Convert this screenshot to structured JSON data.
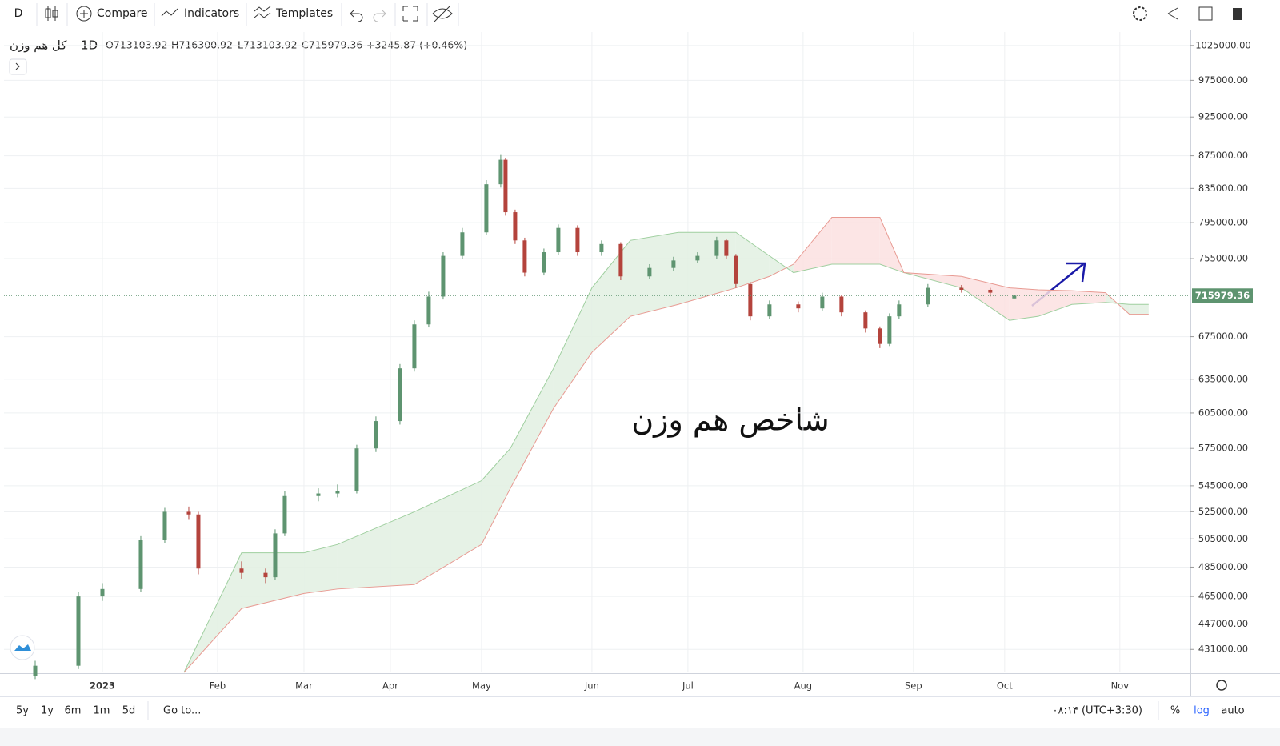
{
  "toolbar": {
    "interval": "D",
    "compare": "Compare",
    "indicators": "Indicators",
    "templates": "Templates"
  },
  "bottom_bar": {
    "ranges": [
      "5y",
      "1y",
      "6m",
      "1m",
      "5d"
    ],
    "goto": "Go to...",
    "time": "۰۸:۱۴ (UTC+3:30)",
    "percent": "%",
    "log": "log",
    "auto": "auto"
  },
  "chart_data": {
    "type": "candlestick",
    "symbol": "کل هم وزن",
    "interval": "1D",
    "legend_values": [
      "O713103.92",
      "H716300.92",
      "L713103.92",
      "C715979.36",
      "+3245.87 (+0.46%)"
    ],
    "annotation": "شاخص هم وزن",
    "log_scale": true,
    "grid": true,
    "up_color": "#5e9470",
    "down_color": "#b4433c",
    "cloud_up_color": "#e2f0e2",
    "cloud_down_color": "#fbe0e0",
    "span_a_color": "#9fcf9f",
    "span_b_color": "#e89a92",
    "xlim": [
      -20.5,
      226.7
    ],
    "xticks": [
      {
        "value": 0,
        "label": "2023"
      },
      {
        "value": 24,
        "label": "Feb"
      },
      {
        "value": 42,
        "label": "Mar"
      },
      {
        "value": 60,
        "label": "Apr"
      },
      {
        "value": 79,
        "label": "May"
      },
      {
        "value": 102,
        "label": "Jun"
      },
      {
        "value": 122,
        "label": "Jul"
      },
      {
        "value": 146,
        "label": "Aug"
      },
      {
        "value": 169,
        "label": "Sep"
      },
      {
        "value": 188,
        "label": "Oct"
      },
      {
        "value": 212,
        "label": "Nov"
      }
    ],
    "ylim": [
      417000,
      1045000
    ],
    "yticks": [
      {
        "value": 1025000,
        "label": "1025000.00"
      },
      {
        "value": 975000,
        "label": "975000.00"
      },
      {
        "value": 925000,
        "label": "925000.00"
      },
      {
        "value": 875000,
        "label": "875000.00"
      },
      {
        "value": 835000,
        "label": "835000.00"
      },
      {
        "value": 795000,
        "label": "795000.00"
      },
      {
        "value": 755000,
        "label": "755000.00"
      },
      {
        "value": 675000,
        "label": "675000.00"
      },
      {
        "value": 635000,
        "label": "635000.00"
      },
      {
        "value": 605000,
        "label": "605000.00"
      },
      {
        "value": 575000,
        "label": "575000.00"
      },
      {
        "value": 545000,
        "label": "545000.00"
      },
      {
        "value": 525000,
        "label": "525000.00"
      },
      {
        "value": 505000,
        "label": "505000.00"
      },
      {
        "value": 485000,
        "label": "485000.00"
      },
      {
        "value": 465000,
        "label": "465000.00"
      },
      {
        "value": 447000,
        "label": "447000.00"
      },
      {
        "value": 431000,
        "label": "431000.00"
      }
    ],
    "candles": [
      {
        "x": -14,
        "o": 415000,
        "h": 424000,
        "l": 413000,
        "c": 421000
      },
      {
        "x": -5,
        "o": 421000,
        "h": 468000,
        "l": 419000,
        "c": 465000
      },
      {
        "x": 0,
        "o": 465000,
        "h": 474000,
        "l": 462000,
        "c": 470000
      },
      {
        "x": 8,
        "o": 470000,
        "h": 507000,
        "l": 468000,
        "c": 504000
      },
      {
        "x": 13,
        "o": 504000,
        "h": 528000,
        "l": 502000,
        "c": 525000
      },
      {
        "x": 18,
        "o": 525000,
        "h": 529000,
        "l": 519000,
        "c": 523000
      },
      {
        "x": 20,
        "o": 523000,
        "h": 525000,
        "l": 480000,
        "c": 484000
      },
      {
        "x": 29,
        "o": 484000,
        "h": 489000,
        "l": 477000,
        "c": 481000
      },
      {
        "x": 34,
        "o": 481000,
        "h": 484000,
        "l": 474000,
        "c": 478000
      },
      {
        "x": 36,
        "o": 478000,
        "h": 512000,
        "l": 476000,
        "c": 509000
      },
      {
        "x": 38,
        "o": 509000,
        "h": 541000,
        "l": 507000,
        "c": 537000
      },
      {
        "x": 45,
        "o": 537000,
        "h": 543000,
        "l": 533000,
        "c": 539000
      },
      {
        "x": 49,
        "o": 539000,
        "h": 546000,
        "l": 536000,
        "c": 541000
      },
      {
        "x": 53,
        "o": 541000,
        "h": 578000,
        "l": 539000,
        "c": 575000
      },
      {
        "x": 57,
        "o": 575000,
        "h": 602000,
        "l": 572000,
        "c": 598000
      },
      {
        "x": 62,
        "o": 598000,
        "h": 649000,
        "l": 595000,
        "c": 645000
      },
      {
        "x": 65,
        "o": 645000,
        "h": 691000,
        "l": 642000,
        "c": 687000
      },
      {
        "x": 68,
        "o": 687000,
        "h": 720000,
        "l": 684000,
        "c": 715000
      },
      {
        "x": 71,
        "o": 715000,
        "h": 762000,
        "l": 712000,
        "c": 758000
      },
      {
        "x": 75,
        "o": 758000,
        "h": 789000,
        "l": 755000,
        "c": 784000
      },
      {
        "x": 80,
        "o": 784000,
        "h": 845000,
        "l": 781000,
        "c": 840000
      },
      {
        "x": 83,
        "o": 840000,
        "h": 876000,
        "l": 836000,
        "c": 870000
      },
      {
        "x": 84,
        "o": 870000,
        "h": 872000,
        "l": 803000,
        "c": 807000
      },
      {
        "x": 86,
        "o": 807000,
        "h": 810000,
        "l": 771000,
        "c": 775000
      },
      {
        "x": 88,
        "o": 775000,
        "h": 778000,
        "l": 736000,
        "c": 740000
      },
      {
        "x": 92,
        "o": 740000,
        "h": 766000,
        "l": 737000,
        "c": 762000
      },
      {
        "x": 95,
        "o": 762000,
        "h": 793000,
        "l": 759000,
        "c": 789000
      },
      {
        "x": 99,
        "o": 789000,
        "h": 792000,
        "l": 758000,
        "c": 762000
      },
      {
        "x": 104,
        "o": 762000,
        "h": 775000,
        "l": 758000,
        "c": 771000
      },
      {
        "x": 108,
        "o": 771000,
        "h": 773000,
        "l": 732000,
        "c": 736000
      },
      {
        "x": 114,
        "o": 736000,
        "h": 749000,
        "l": 733000,
        "c": 745000
      },
      {
        "x": 119,
        "o": 745000,
        "h": 757000,
        "l": 742000,
        "c": 753000
      },
      {
        "x": 124,
        "o": 753000,
        "h": 762000,
        "l": 750000,
        "c": 758000
      },
      {
        "x": 128,
        "o": 758000,
        "h": 779000,
        "l": 755000,
        "c": 775000
      },
      {
        "x": 130,
        "o": 775000,
        "h": 777000,
        "l": 755000,
        "c": 758000
      },
      {
        "x": 132,
        "o": 758000,
        "h": 760000,
        "l": 724000,
        "c": 728000
      },
      {
        "x": 135,
        "o": 728000,
        "h": 730000,
        "l": 691000,
        "c": 695000
      },
      {
        "x": 139,
        "o": 695000,
        "h": 711000,
        "l": 692000,
        "c": 707000
      },
      {
        "x": 145,
        "o": 707000,
        "h": 710000,
        "l": 699000,
        "c": 703000
      },
      {
        "x": 150,
        "o": 703000,
        "h": 719000,
        "l": 700000,
        "c": 715000
      },
      {
        "x": 154,
        "o": 715000,
        "h": 717000,
        "l": 695000,
        "c": 699000
      },
      {
        "x": 159,
        "o": 699000,
        "h": 701000,
        "l": 679000,
        "c": 683000
      },
      {
        "x": 162,
        "o": 683000,
        "h": 685000,
        "l": 664000,
        "c": 668000
      },
      {
        "x": 164,
        "o": 668000,
        "h": 698000,
        "l": 666000,
        "c": 695000
      },
      {
        "x": 166,
        "o": 695000,
        "h": 711000,
        "l": 692000,
        "c": 707000
      },
      {
        "x": 172,
        "o": 707000,
        "h": 728000,
        "l": 704000,
        "c": 724000
      },
      {
        "x": 179,
        "o": 724000,
        "h": 727000,
        "l": 719000,
        "c": 722000
      },
      {
        "x": 185,
        "o": 722000,
        "h": 724000,
        "l": 715000,
        "c": 719000
      },
      {
        "x": 190,
        "o": 713103.92,
        "h": 716300.92,
        "l": 713103.92,
        "c": 715979.36
      }
    ],
    "cloud": {
      "x": [
        17,
        29,
        42,
        49,
        65,
        79,
        85,
        94,
        102,
        110,
        120,
        132,
        139,
        144,
        152,
        162,
        167,
        179,
        189,
        195,
        202,
        209,
        214,
        218
      ],
      "span_a": [
        417000,
        495000,
        495000,
        501000,
        525000,
        549000,
        575000,
        645000,
        724000,
        775000,
        784000,
        784000,
        758000,
        740000,
        749000,
        749000,
        740000,
        724000,
        691000,
        695000,
        707000,
        709000,
        707000,
        707000
      ],
      "span_b": [
        417000,
        457000,
        467000,
        470000,
        473000,
        501000,
        543000,
        609000,
        660000,
        695000,
        707000,
        724000,
        736000,
        749000,
        801000,
        801000,
        740000,
        736000,
        724000,
        722000,
        721000,
        719000,
        697000,
        697000
      ]
    }
  }
}
